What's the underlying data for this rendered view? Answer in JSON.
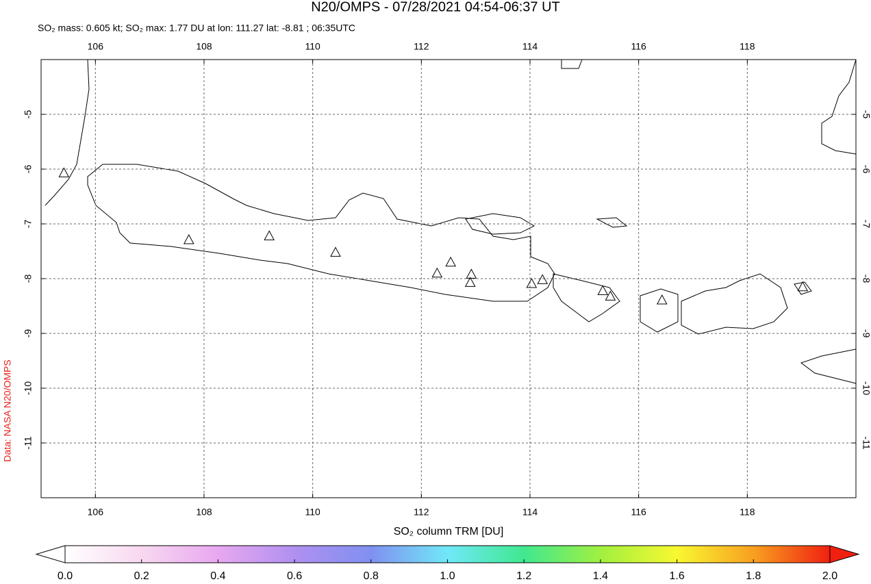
{
  "chart_data": {
    "type": "map",
    "title": "N20/OMPS - 07/28/2021 04:54-06:37 UT",
    "subtitle": "SO₂ mass: 0.605 kt; SO₂ max: 1.77 DU at lon: 111.27 lat: -8.81 ; 06:35UTC",
    "credit": "Data: NASA N20/OMPS",
    "xlim": [
      105,
      120
    ],
    "ylim": [
      -12,
      -4
    ],
    "xticks": [
      106,
      108,
      110,
      112,
      114,
      116,
      118
    ],
    "yticks": [
      -5,
      -6,
      -7,
      -8,
      -9,
      -10,
      -11
    ],
    "grid": true,
    "volcanoes": {
      "lon": [
        105.42,
        107.72,
        109.2,
        110.42,
        112.29,
        112.54,
        112.92,
        112.9,
        114.03,
        114.23,
        115.34,
        115.48,
        116.43,
        119.02
      ],
      "lat": [
        -6.08,
        -7.3,
        -7.23,
        -7.53,
        -7.91,
        -7.71,
        -7.93,
        -8.08,
        -8.1,
        -8.03,
        -8.23,
        -8.33,
        -8.4,
        -8.16
      ]
    },
    "colorbar": {
      "label": "SO₂ column TRM [DU]",
      "lim": [
        0,
        2
      ],
      "colors": [
        "#ffffff",
        "#f8d8f0",
        "#e8a8f0",
        "#b090f0",
        "#8090f0",
        "#70e8f8",
        "#40e890",
        "#a0f040",
        "#f8f830",
        "#f8a020",
        "#f02010"
      ],
      "ticks": [
        {
          "value": 0,
          "label": "0.0"
        },
        {
          "value": 0.2,
          "label": "0.2"
        },
        {
          "value": 0.4,
          "label": "0.4"
        },
        {
          "value": 0.6,
          "label": "0.6"
        },
        {
          "value": 0.8,
          "label": "0.8"
        },
        {
          "value": 1,
          "label": "1.0"
        },
        {
          "value": 1.2,
          "label": "1.2"
        },
        {
          "value": 1.4,
          "label": "1.4"
        },
        {
          "value": 1.6,
          "label": "1.6"
        },
        {
          "value": 1.8,
          "label": "1.8"
        },
        {
          "value": 2,
          "label": "2.0"
        }
      ]
    }
  }
}
